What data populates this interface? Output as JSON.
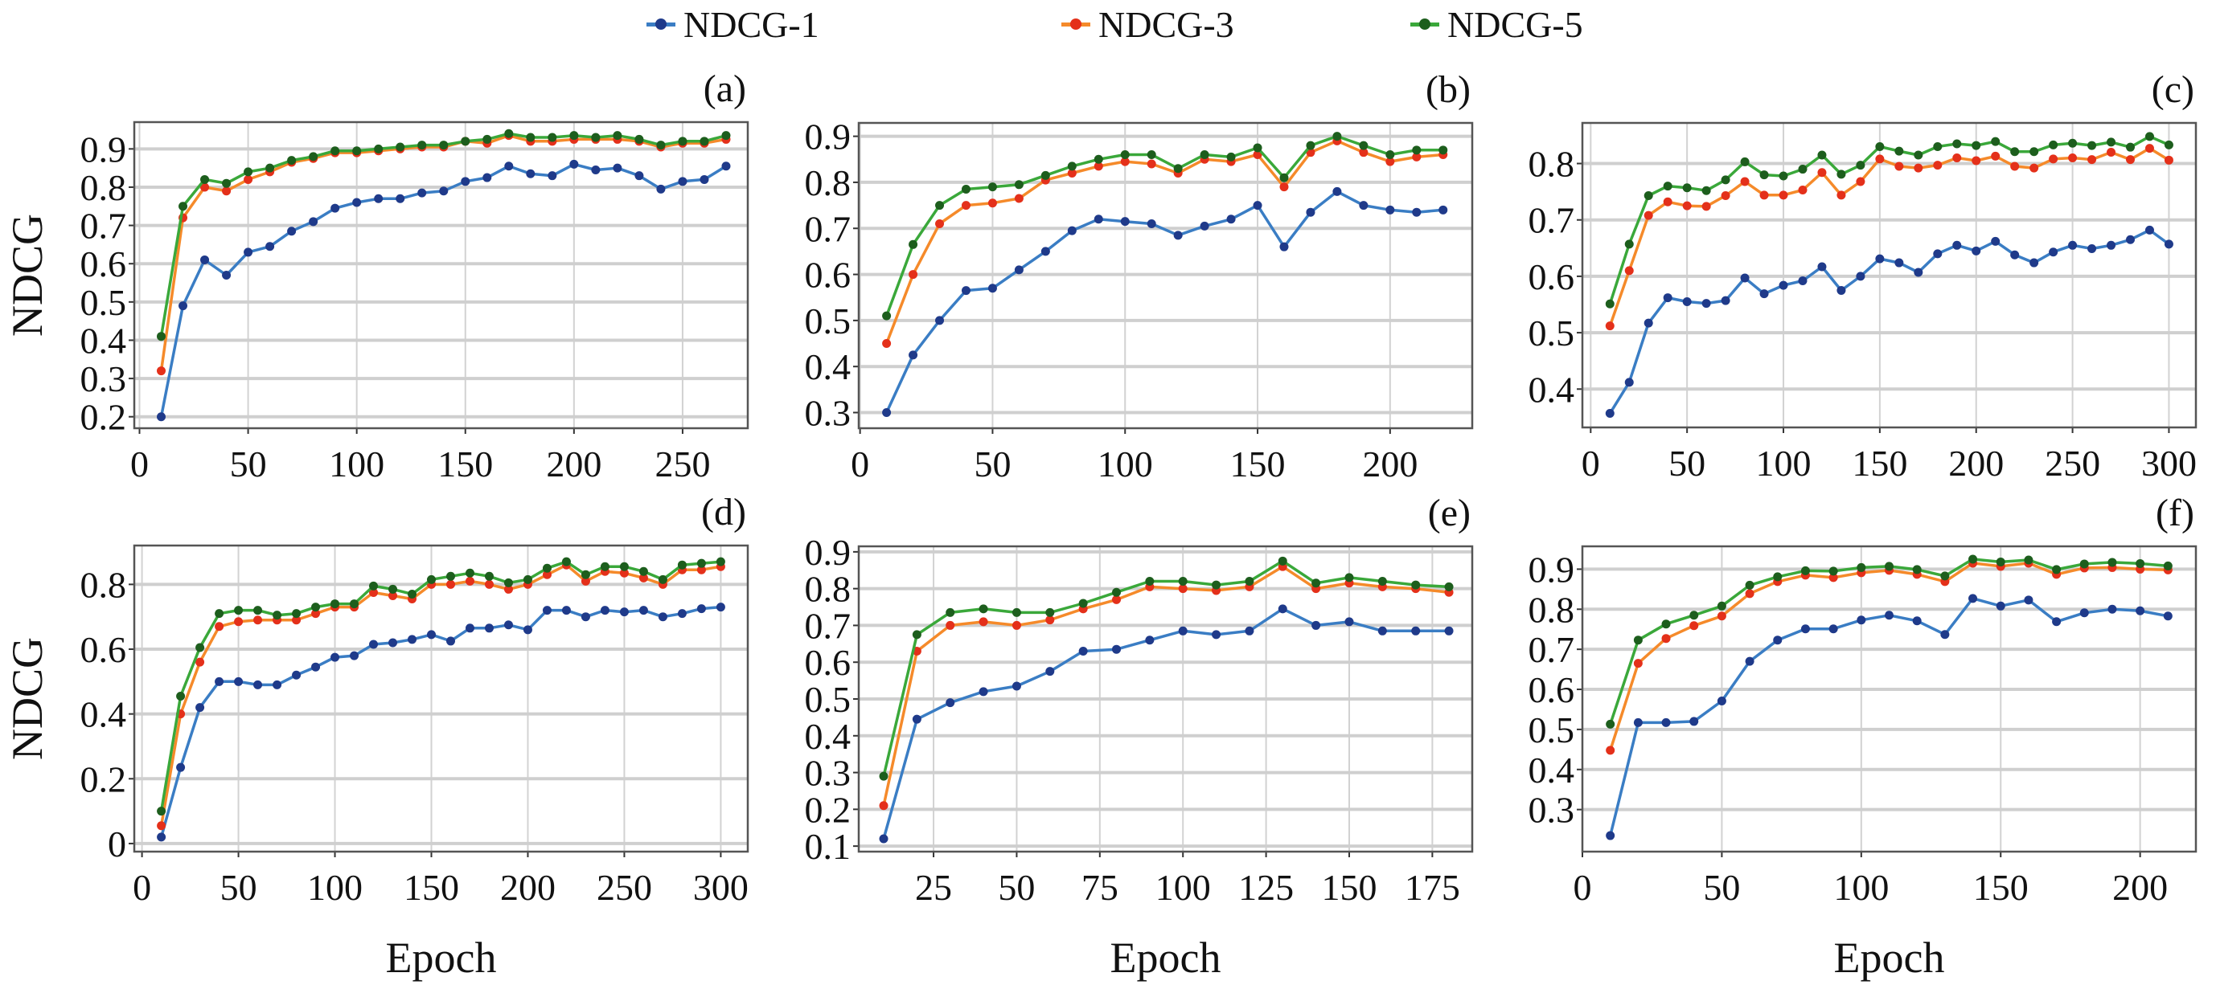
{
  "legend": [
    {
      "name": "NDCG-1",
      "line_color": "#3a7dc4",
      "marker_color": "#1f3a8a"
    },
    {
      "name": "NDCG-3",
      "line_color": "#f58a2a",
      "marker_color": "#e4301a"
    },
    {
      "name": "NDCG-5",
      "line_color": "#3aa83a",
      "marker_color": "#1d5e1d"
    }
  ],
  "chart_data": [
    {
      "type": "line",
      "title": "(a)",
      "xlabel": "",
      "ylabel": "NDCG",
      "xlim": [
        -2.4,
        280
      ],
      "ylim": [
        0.17,
        0.97
      ],
      "xticks": [
        0,
        50,
        100,
        150,
        200,
        250
      ],
      "yticks": [
        0.2,
        0.3,
        0.4,
        0.5,
        0.6,
        0.7,
        0.8,
        0.9
      ],
      "grid": true,
      "x": [
        10,
        20,
        30,
        40,
        50,
        60,
        70,
        80,
        90,
        100,
        110,
        120,
        130,
        140,
        150,
        160,
        170,
        180,
        190,
        200,
        210,
        220,
        230,
        240,
        250,
        260,
        270
      ],
      "series": [
        {
          "name": "NDCG-1",
          "values": [
            0.2,
            0.49,
            0.61,
            0.57,
            0.63,
            0.645,
            0.685,
            0.71,
            0.745,
            0.76,
            0.77,
            0.77,
            0.785,
            0.79,
            0.815,
            0.825,
            0.855,
            0.835,
            0.83,
            0.86,
            0.845,
            0.85,
            0.83,
            0.795,
            0.815,
            0.82,
            0.855
          ]
        },
        {
          "name": "NDCG-3",
          "values": [
            0.32,
            0.72,
            0.8,
            0.79,
            0.82,
            0.84,
            0.865,
            0.875,
            0.89,
            0.89,
            0.895,
            0.9,
            0.905,
            0.905,
            0.92,
            0.915,
            0.935,
            0.92,
            0.92,
            0.925,
            0.925,
            0.925,
            0.92,
            0.905,
            0.915,
            0.915,
            0.925
          ]
        },
        {
          "name": "NDCG-5",
          "values": [
            0.41,
            0.75,
            0.82,
            0.81,
            0.84,
            0.85,
            0.87,
            0.88,
            0.895,
            0.895,
            0.9,
            0.905,
            0.91,
            0.91,
            0.92,
            0.925,
            0.94,
            0.93,
            0.93,
            0.935,
            0.93,
            0.935,
            0.925,
            0.91,
            0.92,
            0.92,
            0.935
          ]
        }
      ]
    },
    {
      "type": "line",
      "title": "(b)",
      "xlabel": "",
      "ylabel": "",
      "xlim": [
        -0.5,
        231
      ],
      "ylim": [
        0.266,
        0.929
      ],
      "xticks": [
        0,
        50,
        100,
        150,
        200
      ],
      "yticks": [
        0.3,
        0.4,
        0.5,
        0.6,
        0.7,
        0.8,
        0.9
      ],
      "grid": true,
      "x": [
        10,
        20,
        30,
        40,
        50,
        60,
        70,
        80,
        90,
        100,
        110,
        120,
        130,
        140,
        150,
        160,
        170,
        180,
        190,
        200,
        210,
        220
      ],
      "series": [
        {
          "name": "NDCG-1",
          "values": [
            0.3,
            0.425,
            0.5,
            0.565,
            0.57,
            0.61,
            0.65,
            0.695,
            0.72,
            0.715,
            0.71,
            0.685,
            0.705,
            0.72,
            0.75,
            0.66,
            0.735,
            0.78,
            0.75,
            0.74,
            0.735,
            0.74
          ]
        },
        {
          "name": "NDCG-3",
          "values": [
            0.45,
            0.6,
            0.71,
            0.75,
            0.755,
            0.765,
            0.805,
            0.82,
            0.835,
            0.845,
            0.84,
            0.82,
            0.85,
            0.845,
            0.86,
            0.79,
            0.865,
            0.89,
            0.865,
            0.845,
            0.855,
            0.86
          ]
        },
        {
          "name": "NDCG-5",
          "values": [
            0.51,
            0.665,
            0.75,
            0.785,
            0.79,
            0.795,
            0.815,
            0.835,
            0.85,
            0.86,
            0.86,
            0.83,
            0.86,
            0.855,
            0.875,
            0.81,
            0.88,
            0.9,
            0.88,
            0.86,
            0.87,
            0.87
          ]
        }
      ]
    },
    {
      "type": "line",
      "title": "(c)",
      "xlabel": "",
      "ylabel": "",
      "xlim": [
        -4.3,
        314
      ],
      "ylim": [
        0.332,
        0.872
      ],
      "xticks": [
        0,
        50,
        100,
        150,
        200,
        250,
        300
      ],
      "yticks": [
        0.4,
        0.5,
        0.6,
        0.7,
        0.8
      ],
      "grid": true,
      "x": [
        10,
        20,
        30,
        40,
        50,
        60,
        70,
        80,
        90,
        100,
        110,
        120,
        130,
        140,
        150,
        160,
        170,
        180,
        190,
        200,
        210,
        220,
        230,
        240,
        250,
        260,
        270,
        280,
        290,
        300
      ],
      "series": [
        {
          "name": "NDCG-1",
          "values": [
            0.357,
            0.412,
            0.517,
            0.562,
            0.555,
            0.552,
            0.557,
            0.597,
            0.569,
            0.584,
            0.592,
            0.617,
            0.575,
            0.6,
            0.631,
            0.624,
            0.607,
            0.64,
            0.655,
            0.645,
            0.662,
            0.638,
            0.624,
            0.643,
            0.655,
            0.649,
            0.655,
            0.665,
            0.682,
            0.657
          ]
        },
        {
          "name": "NDCG-3",
          "values": [
            0.512,
            0.61,
            0.708,
            0.732,
            0.725,
            0.724,
            0.743,
            0.768,
            0.744,
            0.744,
            0.753,
            0.784,
            0.744,
            0.768,
            0.808,
            0.795,
            0.792,
            0.797,
            0.81,
            0.805,
            0.813,
            0.795,
            0.792,
            0.808,
            0.81,
            0.807,
            0.82,
            0.807,
            0.827,
            0.806
          ]
        },
        {
          "name": "NDCG-5",
          "values": [
            0.551,
            0.657,
            0.743,
            0.76,
            0.757,
            0.752,
            0.771,
            0.803,
            0.78,
            0.778,
            0.79,
            0.815,
            0.781,
            0.797,
            0.83,
            0.822,
            0.815,
            0.83,
            0.835,
            0.832,
            0.839,
            0.821,
            0.821,
            0.833,
            0.836,
            0.832,
            0.838,
            0.829,
            0.848,
            0.833
          ]
        }
      ]
    },
    {
      "type": "line",
      "title": "(d)",
      "xlabel": "Epoch",
      "ylabel": "NDCG",
      "xlim": [
        -4,
        314
      ],
      "ylim": [
        -0.025,
        0.92
      ],
      "xticks": [
        0,
        50,
        100,
        150,
        200,
        250,
        300
      ],
      "yticks": [
        0,
        0.2,
        0.4,
        0.6,
        0.8
      ],
      "grid": true,
      "x": [
        10,
        20,
        30,
        40,
        50,
        60,
        70,
        80,
        90,
        100,
        110,
        120,
        130,
        140,
        150,
        160,
        170,
        180,
        190,
        200,
        210,
        220,
        230,
        240,
        250,
        260,
        270,
        280,
        290,
        300
      ],
      "series": [
        {
          "name": "NDCG-1",
          "values": [
            0.02,
            0.235,
            0.42,
            0.5,
            0.5,
            0.49,
            0.49,
            0.52,
            0.545,
            0.575,
            0.58,
            0.615,
            0.62,
            0.63,
            0.645,
            0.625,
            0.665,
            0.665,
            0.675,
            0.66,
            0.72,
            0.72,
            0.7,
            0.72,
            0.715,
            0.72,
            0.7,
            0.71,
            0.725,
            0.73
          ]
        },
        {
          "name": "NDCG-3",
          "values": [
            0.055,
            0.4,
            0.56,
            0.67,
            0.685,
            0.69,
            0.69,
            0.69,
            0.71,
            0.73,
            0.73,
            0.775,
            0.765,
            0.755,
            0.8,
            0.8,
            0.81,
            0.8,
            0.785,
            0.8,
            0.83,
            0.86,
            0.81,
            0.84,
            0.835,
            0.82,
            0.8,
            0.845,
            0.845,
            0.855
          ]
        },
        {
          "name": "NDCG-5",
          "values": [
            0.1,
            0.455,
            0.605,
            0.71,
            0.72,
            0.72,
            0.705,
            0.71,
            0.73,
            0.74,
            0.74,
            0.795,
            0.785,
            0.77,
            0.815,
            0.825,
            0.835,
            0.825,
            0.805,
            0.815,
            0.85,
            0.87,
            0.83,
            0.855,
            0.855,
            0.84,
            0.815,
            0.86,
            0.865,
            0.87
          ]
        }
      ]
    },
    {
      "type": "line",
      "title": "(e)",
      "xlabel": "Epoch",
      "ylabel": "",
      "xlim": [
        2.5,
        187
      ],
      "ylim": [
        0.085,
        0.915
      ],
      "xticks": [
        25,
        50,
        75,
        100,
        125,
        150,
        175
      ],
      "yticks": [
        0.1,
        0.2,
        0.3,
        0.4,
        0.5,
        0.6,
        0.7,
        0.8,
        0.9
      ],
      "grid": true,
      "x": [
        10,
        20,
        30,
        40,
        50,
        60,
        70,
        80,
        90,
        100,
        110,
        120,
        130,
        140,
        150,
        160,
        170,
        180
      ],
      "series": [
        {
          "name": "NDCG-1",
          "values": [
            0.12,
            0.445,
            0.49,
            0.52,
            0.535,
            0.575,
            0.63,
            0.635,
            0.66,
            0.685,
            0.675,
            0.685,
            0.745,
            0.7,
            0.71,
            0.685,
            0.685,
            0.685
          ]
        },
        {
          "name": "NDCG-3",
          "values": [
            0.21,
            0.63,
            0.7,
            0.71,
            0.7,
            0.715,
            0.745,
            0.77,
            0.805,
            0.8,
            0.795,
            0.805,
            0.86,
            0.8,
            0.815,
            0.805,
            0.8,
            0.79
          ]
        },
        {
          "name": "NDCG-5",
          "values": [
            0.29,
            0.675,
            0.735,
            0.745,
            0.735,
            0.735,
            0.76,
            0.79,
            0.82,
            0.82,
            0.81,
            0.82,
            0.875,
            0.815,
            0.83,
            0.82,
            0.81,
            0.805
          ]
        }
      ]
    },
    {
      "type": "line",
      "title": "(f)",
      "xlabel": "Epoch",
      "ylabel": "",
      "xlim": [
        0,
        220
      ],
      "ylim": [
        0.195,
        0.957
      ],
      "xticks": [
        0,
        50,
        100,
        150,
        200
      ],
      "yticks": [
        0.3,
        0.4,
        0.5,
        0.6,
        0.7,
        0.8,
        0.9
      ],
      "grid": true,
      "x": [
        10,
        20,
        30,
        40,
        50,
        60,
        70,
        80,
        90,
        100,
        110,
        120,
        130,
        140,
        150,
        160,
        170,
        180,
        190,
        200,
        210
      ],
      "series": [
        {
          "name": "NDCG-1",
          "values": [
            0.235,
            0.517,
            0.517,
            0.52,
            0.571,
            0.67,
            0.723,
            0.751,
            0.751,
            0.773,
            0.785,
            0.771,
            0.737,
            0.827,
            0.808,
            0.823,
            0.769,
            0.791,
            0.8,
            0.796,
            0.783
          ]
        },
        {
          "name": "NDCG-3",
          "values": [
            0.448,
            0.665,
            0.727,
            0.759,
            0.783,
            0.839,
            0.869,
            0.885,
            0.879,
            0.891,
            0.897,
            0.887,
            0.869,
            0.915,
            0.907,
            0.915,
            0.887,
            0.903,
            0.904,
            0.9,
            0.898
          ]
        },
        {
          "name": "NDCG-5",
          "values": [
            0.513,
            0.723,
            0.763,
            0.785,
            0.808,
            0.86,
            0.881,
            0.896,
            0.895,
            0.904,
            0.907,
            0.899,
            0.883,
            0.925,
            0.918,
            0.923,
            0.899,
            0.913,
            0.917,
            0.914,
            0.908
          ]
        }
      ]
    }
  ]
}
